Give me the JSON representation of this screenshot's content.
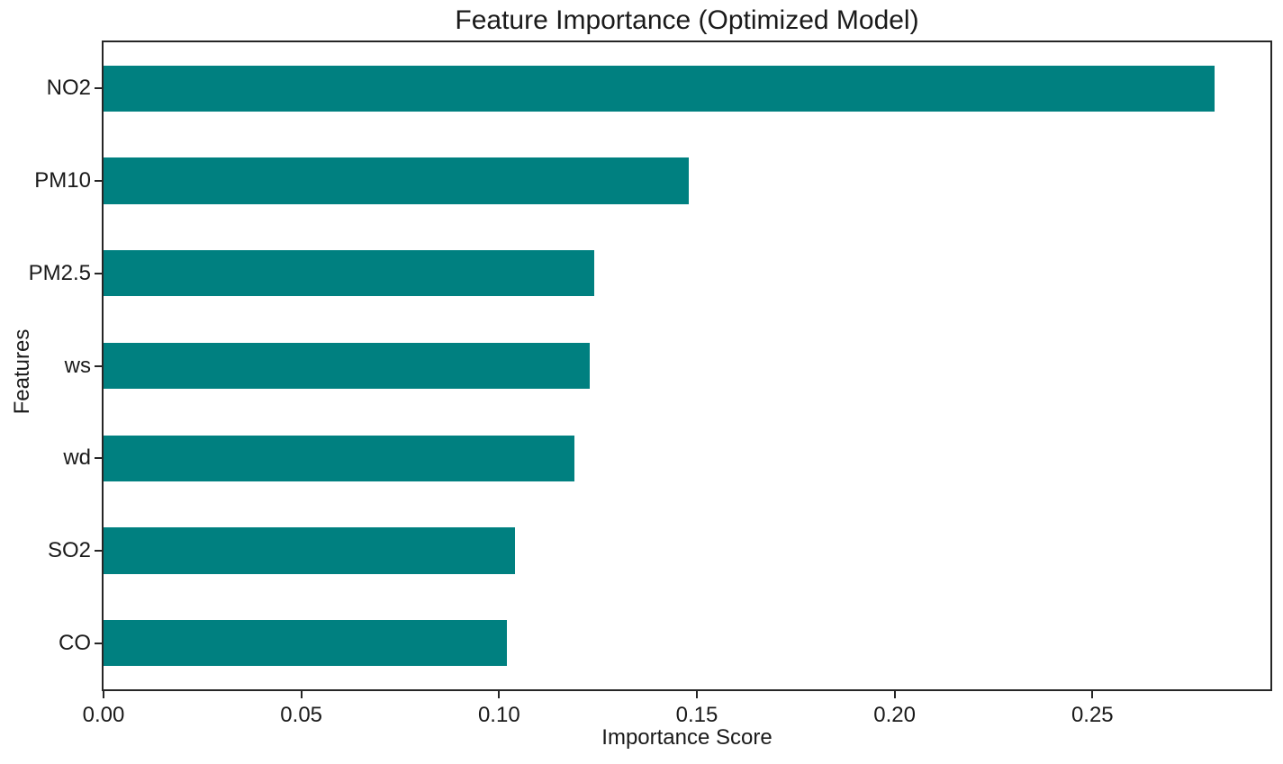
{
  "chart_data": {
    "type": "bar",
    "orientation": "horizontal",
    "title": "Feature Importance (Optimized Model)",
    "xlabel": "Importance Score",
    "ylabel": "Features",
    "categories": [
      "NO2",
      "PM10",
      "PM2.5",
      "ws",
      "wd",
      "SO2",
      "CO"
    ],
    "values": [
      0.281,
      0.148,
      0.124,
      0.123,
      0.119,
      0.104,
      0.102
    ],
    "series": [
      {
        "name": "importance",
        "values": [
          0.281,
          0.148,
          0.124,
          0.123,
          0.119,
          0.104,
          0.102
        ]
      }
    ],
    "bar_color": "#008080",
    "xlim": [
      0,
      0.295
    ],
    "xticks": [
      0,
      0.05,
      0.1,
      0.15,
      0.2,
      0.25
    ],
    "xtick_labels": [
      "0.00",
      "0.05",
      "0.10",
      "0.15",
      "0.20",
      "0.25"
    ],
    "bar_height_fraction": 0.5,
    "grid": false,
    "legend": null,
    "spine_color": "#262626",
    "text_color": "#1a1a1a",
    "background_color": "#ffffff"
  }
}
